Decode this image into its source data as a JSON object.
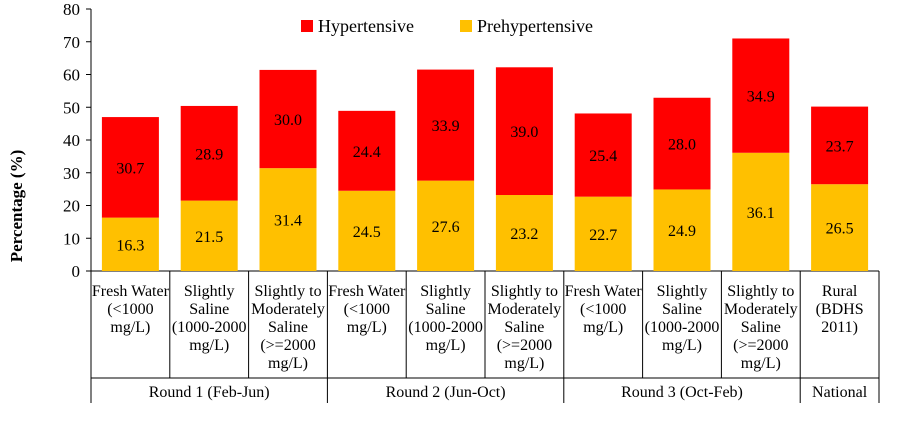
{
  "chart_data": {
    "type": "bar",
    "stacked": true,
    "categories": [
      "Fresh Water (<1000 mg/L)",
      "Slightly Saline (1000-2000 mg/L)",
      "Slightly to Moderately Saline (>=2000 mg/L)",
      "Fresh Water (<1000 mg/L)",
      "Slightly Saline (1000-2000 mg/L)",
      "Slightly to Moderately Saline (>=2000 mg/L)",
      "Fresh Water (<1000 mg/L)",
      "Slightly Saline (1000-2000 mg/L)",
      "Slightly to Moderately Saline (>=2000 mg/L)",
      "Rural (BDHS 2011)"
    ],
    "category_lines": [
      [
        "Fresh Water",
        "(<1000",
        "mg/L)"
      ],
      [
        "Slightly",
        "Saline",
        "(1000-2000",
        "mg/L)"
      ],
      [
        "Slightly to",
        "Moderately",
        "Saline",
        "(>=2000",
        "mg/L)"
      ],
      [
        "Fresh Water",
        "(<1000",
        "mg/L)"
      ],
      [
        "Slightly",
        "Saline",
        "(1000-2000",
        "mg/L)"
      ],
      [
        "Slightly to",
        "Moderately",
        "Saline",
        "(>=2000",
        "mg/L)"
      ],
      [
        "Fresh Water",
        "(<1000",
        "mg/L)"
      ],
      [
        "Slightly",
        "Saline",
        "(1000-2000",
        "mg/L)"
      ],
      [
        "Slightly to",
        "Moderately",
        "Saline",
        "(>=2000",
        "mg/L)"
      ],
      [
        "Rural",
        "(BDHS",
        "2011)"
      ]
    ],
    "groups": [
      {
        "label": "Round 1 (Feb-Jun)",
        "count": 3
      },
      {
        "label": "Round 2 (Jun-Oct)",
        "count": 3
      },
      {
        "label": "Round 3 (Oct-Feb)",
        "count": 3
      },
      {
        "label": "National",
        "count": 1
      }
    ],
    "series": [
      {
        "name": "Prehypertensive",
        "color": "#FFC000",
        "values": [
          16.3,
          21.5,
          31.4,
          24.5,
          27.6,
          23.2,
          22.7,
          24.9,
          36.1,
          26.5
        ]
      },
      {
        "name": "Hypertensive",
        "color": "#FF0000",
        "values": [
          30.7,
          28.9,
          30.0,
          24.4,
          33.9,
          39.0,
          25.4,
          28.0,
          34.9,
          23.7
        ]
      }
    ],
    "legend_order": [
      "Hypertensive",
      "Prehypertensive"
    ],
    "legend_position": "top",
    "ylabel": "Percentage (%)",
    "xlabel": "",
    "ylim": [
      0,
      80
    ],
    "yticks": [
      0,
      10,
      20,
      30,
      40,
      50,
      60,
      70,
      80
    ],
    "grid": false
  }
}
